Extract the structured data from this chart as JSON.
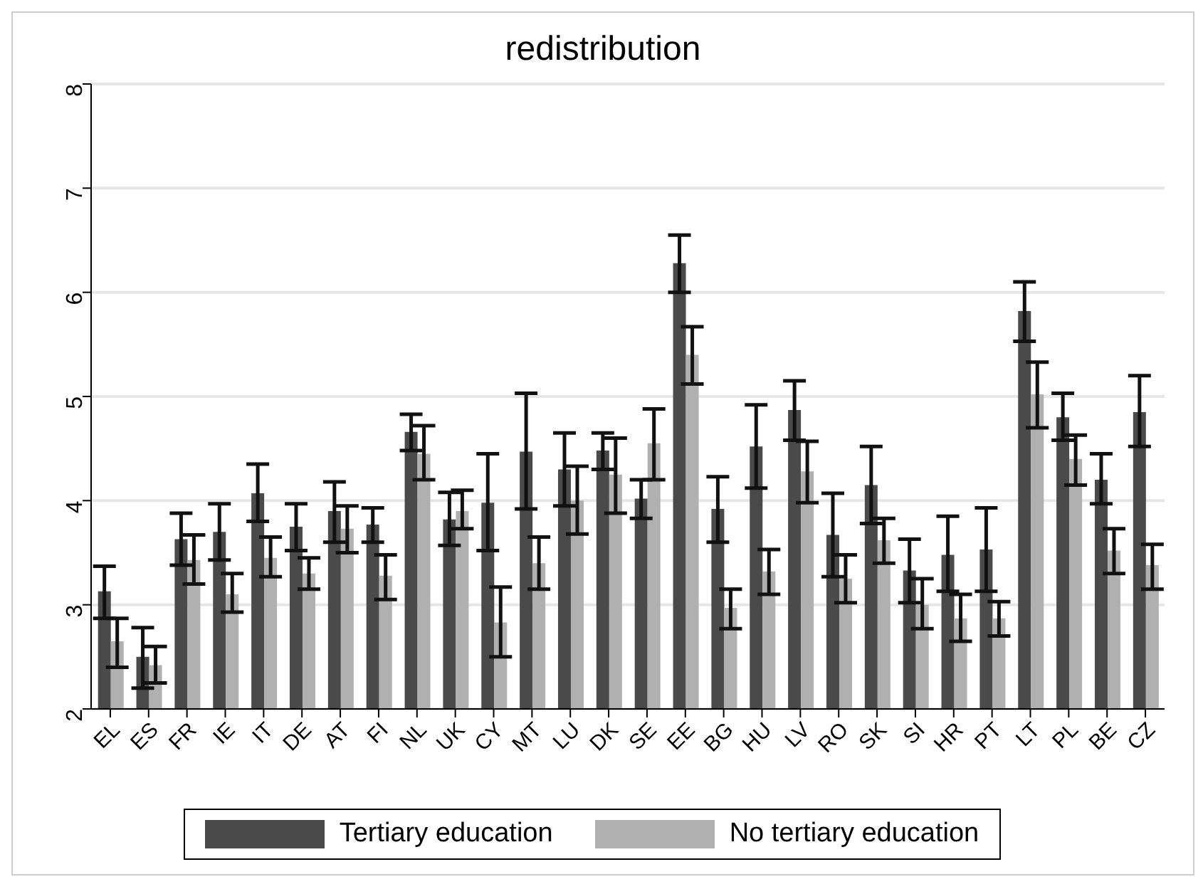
{
  "chart_data": {
    "type": "bar",
    "title": "redistribution",
    "categories": [
      "EL",
      "ES",
      "FR",
      "IE",
      "IT",
      "DE",
      "AT",
      "FI",
      "NL",
      "UK",
      "CY",
      "MT",
      "LU",
      "DK",
      "SE",
      "EE",
      "BG",
      "HU",
      "LV",
      "RO",
      "SK",
      "SI",
      "HR",
      "PT",
      "LT",
      "PL",
      "BE",
      "CZ"
    ],
    "series": [
      {
        "name": "Tertiary education",
        "color": "#4a4a4a",
        "values": [
          3.13,
          2.5,
          3.63,
          3.7,
          4.07,
          3.75,
          3.9,
          3.77,
          4.66,
          3.82,
          3.98,
          4.47,
          4.3,
          4.48,
          4.02,
          6.28,
          3.92,
          4.52,
          4.87,
          3.67,
          4.15,
          3.33,
          3.48,
          3.53,
          5.82,
          4.8,
          4.2,
          4.85
        ],
        "errors": [
          [
            2.87,
            3.37
          ],
          [
            2.2,
            2.78
          ],
          [
            3.38,
            3.88
          ],
          [
            3.43,
            3.97
          ],
          [
            3.8,
            4.35
          ],
          [
            3.52,
            3.97
          ],
          [
            3.6,
            4.18
          ],
          [
            3.6,
            3.93
          ],
          [
            4.48,
            4.83
          ],
          [
            3.57,
            4.08
          ],
          [
            3.52,
            4.45
          ],
          [
            3.92,
            5.03
          ],
          [
            3.95,
            4.65
          ],
          [
            4.3,
            4.65
          ],
          [
            3.83,
            4.2
          ],
          [
            6.0,
            6.55
          ],
          [
            3.6,
            4.23
          ],
          [
            4.12,
            4.92
          ],
          [
            4.58,
            5.15
          ],
          [
            3.27,
            4.07
          ],
          [
            3.78,
            4.52
          ],
          [
            3.02,
            3.63
          ],
          [
            3.13,
            3.85
          ],
          [
            3.13,
            3.93
          ],
          [
            5.53,
            6.1
          ],
          [
            4.58,
            5.03
          ],
          [
            3.97,
            4.45
          ],
          [
            4.52,
            5.2
          ]
        ]
      },
      {
        "name": "No tertiary education",
        "color": "#b0b0b0",
        "values": [
          2.65,
          2.42,
          3.43,
          3.1,
          3.45,
          3.3,
          3.73,
          3.28,
          4.45,
          3.9,
          2.83,
          3.4,
          4.0,
          4.25,
          4.55,
          5.4,
          2.97,
          3.32,
          4.28,
          3.25,
          3.62,
          3.0,
          2.87,
          2.87,
          5.02,
          4.4,
          3.52,
          3.38
        ],
        "errors": [
          [
            2.4,
            2.87
          ],
          [
            2.25,
            2.6
          ],
          [
            3.2,
            3.67
          ],
          [
            2.93,
            3.3
          ],
          [
            3.27,
            3.65
          ],
          [
            3.15,
            3.45
          ],
          [
            3.5,
            3.95
          ],
          [
            3.05,
            3.48
          ],
          [
            4.2,
            4.72
          ],
          [
            3.73,
            4.1
          ],
          [
            2.5,
            3.17
          ],
          [
            3.15,
            3.65
          ],
          [
            3.68,
            4.33
          ],
          [
            3.88,
            4.6
          ],
          [
            4.2,
            4.88
          ],
          [
            5.12,
            5.67
          ],
          [
            2.77,
            3.15
          ],
          [
            3.1,
            3.53
          ],
          [
            3.98,
            4.57
          ],
          [
            3.02,
            3.48
          ],
          [
            3.4,
            3.83
          ],
          [
            2.77,
            3.25
          ],
          [
            2.65,
            3.1
          ],
          [
            2.7,
            3.03
          ],
          [
            4.7,
            5.33
          ],
          [
            4.15,
            4.63
          ],
          [
            3.3,
            3.73
          ],
          [
            3.15,
            3.58
          ]
        ]
      }
    ],
    "ylim": [
      2,
      8
    ],
    "yticks": [
      2,
      3,
      4,
      5,
      6,
      7,
      8
    ],
    "grid": "y",
    "legend": "bottom"
  }
}
